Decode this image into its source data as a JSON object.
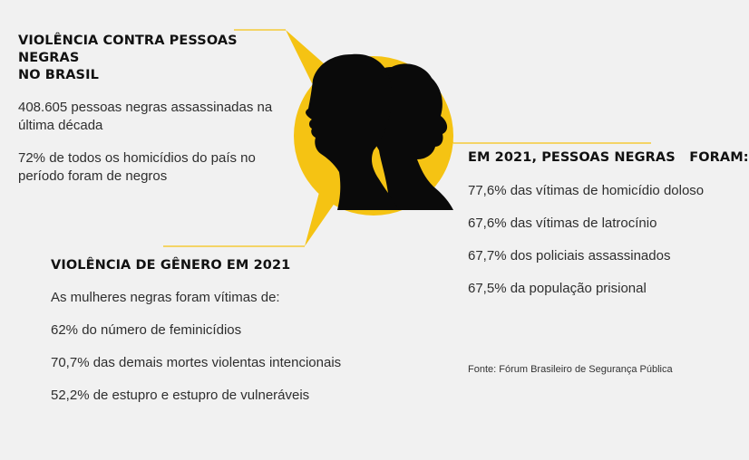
{
  "colors": {
    "background": "#f1f1f1",
    "accent": "#f5c313",
    "silhouette": "#0a0a0a"
  },
  "blocks": {
    "brasil": {
      "heading_line1": "VIOLÊNCIA CONTRA PESSOAS NEGRAS",
      "heading_line2": "NO BRASIL",
      "items": [
        {
          "line1": "408.605 pessoas negras assassinadas na",
          "line2": "última década"
        },
        {
          "line1": "72% de todos os homicídios do país no",
          "line2": "período foram de negros"
        }
      ]
    },
    "ano2021": {
      "heading": "EM 2021, PESSOAS NEGRAS   FORAM:",
      "items": [
        "77,6% das vítimas de homicídio doloso",
        "67,6% das vítimas de latrocínio",
        "67,7% dos policiais assassinados",
        "67,5% da população prisional"
      ]
    },
    "genero": {
      "heading": "VIOLÊNCIA DE GÊNERO EM 2021",
      "intro": "As mulheres negras foram vítimas de:",
      "items": [
        "62% do número de feminicídios",
        "70,7% das demais mortes violentas intencionais",
        "52,2% de estupro e estupro de vulneráveis"
      ]
    }
  },
  "source": "Fonte: Fórum Brasileiro de Segurança Pública"
}
